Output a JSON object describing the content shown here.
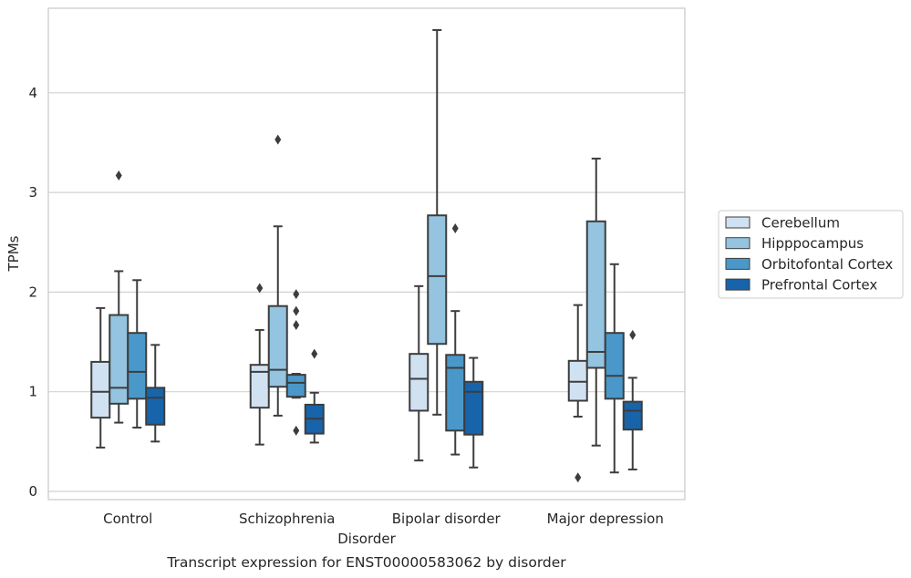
{
  "chart_data": {
    "type": "boxplot",
    "title": "Transcript expression for ENST00000583062 by disorder",
    "xlabel": "Disorder",
    "ylabel": "TPMs",
    "ylim": [
      -0.08,
      4.95
    ],
    "yticks": [
      0,
      1,
      2,
      3,
      4
    ],
    "grid": "horizontal",
    "legend_position": "right",
    "categories": [
      "Control",
      "Schizophrenia",
      "Bipolar disorder",
      "Major depression"
    ],
    "series": [
      {
        "name": "Cerebellum",
        "color": "#d0e1f2",
        "boxes": [
          {
            "whislo": 0.44,
            "q1": 0.74,
            "med": 1.0,
            "q3": 1.3,
            "whishi": 1.84,
            "fliers": []
          },
          {
            "whislo": 0.47,
            "q1": 0.84,
            "med": 1.2,
            "q3": 1.27,
            "whishi": 1.62,
            "fliers": [
              2.04
            ]
          },
          {
            "whislo": 0.31,
            "q1": 0.81,
            "med": 1.13,
            "q3": 1.38,
            "whishi": 2.06,
            "fliers": []
          },
          {
            "whislo": 0.75,
            "q1": 0.91,
            "med": 1.1,
            "q3": 1.31,
            "whishi": 1.87,
            "fliers": [
              0.14
            ]
          }
        ]
      },
      {
        "name": "Hipppocampus",
        "color": "#94c4df",
        "boxes": [
          {
            "whislo": 0.69,
            "q1": 0.88,
            "med": 1.04,
            "q3": 1.77,
            "whishi": 2.21,
            "fliers": [
              3.17
            ]
          },
          {
            "whislo": 0.76,
            "q1": 1.05,
            "med": 1.22,
            "q3": 1.86,
            "whishi": 2.66,
            "fliers": [
              3.53
            ]
          },
          {
            "whislo": 0.77,
            "q1": 1.48,
            "med": 2.16,
            "q3": 2.77,
            "whishi": 4.63,
            "fliers": []
          },
          {
            "whislo": 0.46,
            "q1": 1.24,
            "med": 1.4,
            "q3": 2.71,
            "whishi": 3.34,
            "fliers": []
          }
        ]
      },
      {
        "name": "Orbitofontal Cortex",
        "color": "#4a98c9",
        "boxes": [
          {
            "whislo": 0.64,
            "q1": 0.93,
            "med": 1.2,
            "q3": 1.59,
            "whishi": 2.12,
            "fliers": []
          },
          {
            "whislo": 0.94,
            "q1": 0.95,
            "med": 1.09,
            "q3": 1.17,
            "whishi": 1.18,
            "fliers": [
              0.61,
              1.67,
              1.81,
              1.98
            ]
          },
          {
            "whislo": 0.37,
            "q1": 0.61,
            "med": 1.24,
            "q3": 1.37,
            "whishi": 1.81,
            "fliers": [
              2.64
            ]
          },
          {
            "whislo": 0.19,
            "q1": 0.93,
            "med": 1.16,
            "q3": 1.59,
            "whishi": 2.28,
            "fliers": []
          }
        ]
      },
      {
        "name": "Prefrontal Cortex",
        "color": "#1764ab",
        "boxes": [
          {
            "whislo": 0.5,
            "q1": 0.67,
            "med": 0.94,
            "q3": 1.04,
            "whishi": 1.47,
            "fliers": []
          },
          {
            "whislo": 0.49,
            "q1": 0.58,
            "med": 0.73,
            "q3": 0.87,
            "whishi": 0.99,
            "fliers": [
              1.38
            ]
          },
          {
            "whislo": 0.24,
            "q1": 0.57,
            "med": 1.0,
            "q3": 1.1,
            "whishi": 1.34,
            "fliers": []
          },
          {
            "whislo": 0.22,
            "q1": 0.62,
            "med": 0.81,
            "q3": 0.9,
            "whishi": 1.14,
            "fliers": [
              1.57
            ]
          }
        ]
      }
    ]
  }
}
